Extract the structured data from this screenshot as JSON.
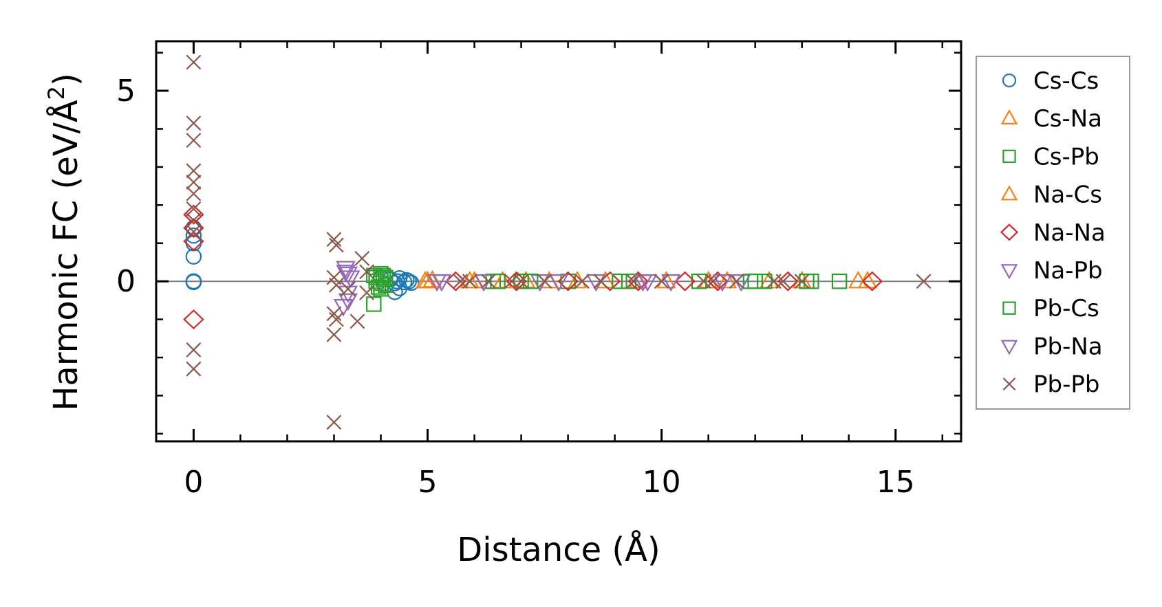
{
  "chart_data": {
    "type": "scatter",
    "xlabel": "Distance (Å)",
    "ylabel_main": "Harmonic FC (eV/Å",
    "ylabel_sup": "2",
    "ylabel_end": ")",
    "xlim": [
      -0.8,
      16.4
    ],
    "ylim": [
      -4.2,
      6.3
    ],
    "x_ticks": [
      0,
      5,
      10,
      15
    ],
    "x_tick_labels": [
      "0",
      "5",
      "10",
      "15"
    ],
    "y_ticks": [
      0,
      5
    ],
    "y_tick_labels": [
      "0",
      "5"
    ],
    "x_minor_ticks": [
      1,
      2,
      3,
      4,
      6,
      7,
      8,
      9,
      11,
      12,
      13,
      14,
      16
    ],
    "y_minor_ticks": [
      -4,
      -3,
      -2,
      -1,
      1,
      2,
      3,
      4,
      6
    ],
    "zero_line": true,
    "legend_position": "right-outside",
    "series": [
      {
        "name": "Cs-Cs",
        "marker": "circle",
        "color": "#1f77b4",
        "points": [
          [
            0,
            1.4
          ],
          [
            0,
            1.2
          ],
          [
            0,
            1.0
          ],
          [
            0,
            0.65
          ],
          [
            0,
            0.0
          ],
          [
            0,
            -0.02
          ],
          [
            4.0,
            0.1
          ],
          [
            4.1,
            -0.1
          ],
          [
            4.2,
            0.05
          ],
          [
            4.3,
            -0.05
          ],
          [
            4.35,
            0.0
          ],
          [
            4.4,
            0.08
          ],
          [
            4.5,
            -0.02
          ],
          [
            4.55,
            0.03
          ],
          [
            4.6,
            0.0
          ],
          [
            4.65,
            -0.04
          ],
          [
            4.3,
            -0.28
          ],
          [
            4.4,
            -0.18
          ]
        ]
      },
      {
        "name": "Cs-Na",
        "marker": "triangle-up",
        "color": "#ff7f0e",
        "points": [
          [
            4.95,
            0.0
          ],
          [
            5.1,
            0.02
          ],
          [
            6.0,
            0.0
          ],
          [
            7.1,
            0.0
          ],
          [
            8.2,
            0.0
          ],
          [
            9.5,
            0.0
          ],
          [
            11.0,
            0.0
          ],
          [
            12.3,
            0.0
          ],
          [
            14.2,
            0.0
          ],
          [
            14.4,
            0.0
          ]
        ]
      },
      {
        "name": "Cs-Pb",
        "marker": "square",
        "color": "#2ca02c",
        "points": [
          [
            3.85,
            -0.6
          ],
          [
            3.85,
            0.15
          ],
          [
            3.9,
            0.0
          ],
          [
            3.95,
            -0.15
          ],
          [
            4.0,
            0.2
          ],
          [
            4.0,
            -0.2
          ],
          [
            4.05,
            0.05
          ],
          [
            4.1,
            0.1
          ],
          [
            6.4,
            0.0
          ],
          [
            7.0,
            0.0
          ],
          [
            8.0,
            0.0
          ],
          [
            9.3,
            0.0
          ],
          [
            10.8,
            0.0
          ],
          [
            11.9,
            0.0
          ],
          [
            12.2,
            0.0
          ],
          [
            13.2,
            0.0
          ],
          [
            13.8,
            0.0
          ]
        ]
      },
      {
        "name": "Na-Cs",
        "marker": "triangle-up",
        "color": "#ff7f0e",
        "points": [
          [
            5.0,
            0.0
          ],
          [
            5.9,
            0.0
          ],
          [
            6.6,
            0.0
          ],
          [
            7.6,
            0.0
          ],
          [
            8.8,
            0.0
          ],
          [
            10.1,
            0.0
          ],
          [
            11.4,
            0.0
          ],
          [
            13.0,
            0.0
          ]
        ]
      },
      {
        "name": "Na-Na",
        "marker": "diamond",
        "color": "#d62728",
        "points": [
          [
            0,
            1.75
          ],
          [
            0,
            1.4
          ],
          [
            0,
            1.05
          ],
          [
            0,
            -1.0
          ],
          [
            5.6,
            0.0
          ],
          [
            6.9,
            0.0
          ],
          [
            8.0,
            0.0
          ],
          [
            8.9,
            0.0
          ],
          [
            9.5,
            0.0
          ],
          [
            10.5,
            0.0
          ],
          [
            11.2,
            0.0
          ],
          [
            12.7,
            0.0
          ],
          [
            14.5,
            0.0
          ]
        ]
      },
      {
        "name": "Na-Pb",
        "marker": "triangle-down",
        "color": "#9467bd",
        "points": [
          [
            3.25,
            0.35
          ],
          [
            3.3,
            0.2
          ],
          [
            3.3,
            -0.5
          ],
          [
            3.35,
            0.1
          ],
          [
            5.2,
            0.0
          ],
          [
            6.2,
            0.0
          ],
          [
            7.4,
            0.0
          ],
          [
            8.6,
            0.0
          ],
          [
            9.7,
            0.0
          ],
          [
            10.2,
            0.0
          ],
          [
            11.7,
            0.0
          ]
        ]
      },
      {
        "name": "Pb-Cs",
        "marker": "square",
        "color": "#2ca02c",
        "points": [
          [
            3.9,
            0.1
          ],
          [
            4.0,
            -0.05
          ],
          [
            4.05,
            0.15
          ],
          [
            4.1,
            -0.1
          ],
          [
            6.5,
            0.0
          ],
          [
            7.2,
            0.0
          ],
          [
            9.1,
            0.0
          ],
          [
            12.0,
            0.0
          ],
          [
            13.1,
            0.0
          ]
        ]
      },
      {
        "name": "Pb-Na",
        "marker": "triangle-down",
        "color": "#9467bd",
        "points": [
          [
            3.2,
            -0.65
          ],
          [
            3.25,
            0.25
          ],
          [
            3.3,
            -0.3
          ],
          [
            5.3,
            0.0
          ],
          [
            7.8,
            0.0
          ],
          [
            9.6,
            0.0
          ],
          [
            11.3,
            0.0
          ]
        ]
      },
      {
        "name": "Pb-Pb",
        "marker": "x",
        "color": "#8c564b",
        "points": [
          [
            0,
            5.75
          ],
          [
            0,
            4.15
          ],
          [
            0,
            3.7
          ],
          [
            0,
            2.9
          ],
          [
            0,
            2.6
          ],
          [
            0,
            2.3
          ],
          [
            0,
            1.9
          ],
          [
            0,
            1.6
          ],
          [
            0,
            1.3
          ],
          [
            0,
            -1.8
          ],
          [
            0,
            -2.3
          ],
          [
            3.0,
            1.1
          ],
          [
            3.05,
            0.95
          ],
          [
            3.0,
            0.1
          ],
          [
            3.05,
            -0.1
          ],
          [
            3.0,
            -0.85
          ],
          [
            3.05,
            -1.0
          ],
          [
            3.0,
            -1.4
          ],
          [
            3.0,
            -3.7
          ],
          [
            3.3,
            -0.2
          ],
          [
            3.5,
            -1.05
          ],
          [
            3.6,
            0.6
          ],
          [
            3.7,
            0.25
          ],
          [
            3.7,
            -0.3
          ],
          [
            5.7,
            0.0
          ],
          [
            5.9,
            0.0
          ],
          [
            6.3,
            0.0
          ],
          [
            6.8,
            0.0
          ],
          [
            7.0,
            0.0
          ],
          [
            7.5,
            0.0
          ],
          [
            8.3,
            0.0
          ],
          [
            8.7,
            0.0
          ],
          [
            9.4,
            0.0
          ],
          [
            10.0,
            0.0
          ],
          [
            10.9,
            0.0
          ],
          [
            11.1,
            0.0
          ],
          [
            11.6,
            0.0
          ],
          [
            12.4,
            0.0
          ],
          [
            12.6,
            0.0
          ],
          [
            13.0,
            0.0
          ],
          [
            15.6,
            0.0
          ]
        ]
      }
    ]
  }
}
